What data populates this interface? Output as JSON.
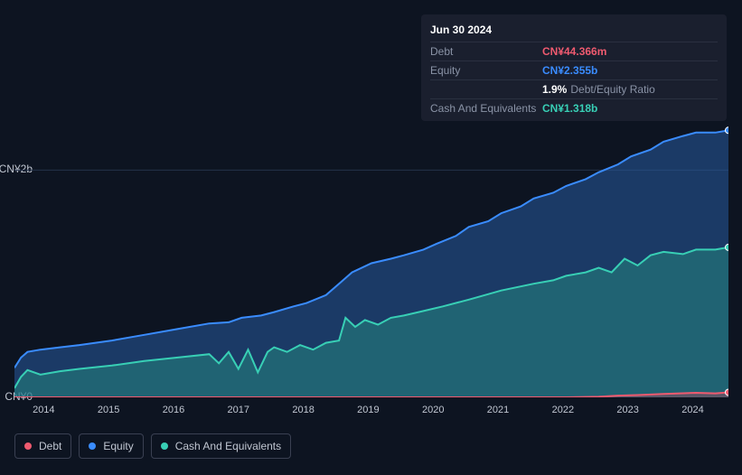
{
  "tooltip": {
    "date": "Jun 30 2024",
    "rows": [
      {
        "label": "Debt",
        "value": "CN¥44.366m",
        "color": "#ef5a6f"
      },
      {
        "label": "Equity",
        "value": "CN¥2.355b",
        "color": "#3a8cff"
      },
      {
        "label": "",
        "value": "1.9%",
        "extra": "Debt/Equity Ratio",
        "color": "#ffffff"
      },
      {
        "label": "Cash And Equivalents",
        "value": "CN¥1.318b",
        "color": "#38cfb5"
      }
    ]
  },
  "chart": {
    "type": "area",
    "background": "#0d1421",
    "grid_color": "#24324a",
    "y_axis": {
      "min": 0,
      "max": 2.4,
      "labels": [
        {
          "text": "CN¥2b",
          "value": 2.0
        },
        {
          "text": "CN¥0",
          "value": 0.0
        }
      ],
      "label_fontsize": 12,
      "label_color": "#c0c6d1"
    },
    "x_axis": {
      "min": 2014,
      "max": 2025,
      "ticks": [
        2014,
        2015,
        2016,
        2017,
        2018,
        2019,
        2020,
        2021,
        2022,
        2023,
        2024
      ],
      "label_fontsize": 11,
      "label_color": "#c0c6d1"
    },
    "series": [
      {
        "name": "Equity",
        "color": "#3a8cff",
        "fill": "rgba(40,90,160,0.55)",
        "line_width": 2,
        "data": [
          [
            2014.0,
            0.26
          ],
          [
            2014.1,
            0.35
          ],
          [
            2014.2,
            0.4
          ],
          [
            2014.4,
            0.42
          ],
          [
            2014.7,
            0.44
          ],
          [
            2015.0,
            0.46
          ],
          [
            2015.5,
            0.5
          ],
          [
            2016.0,
            0.55
          ],
          [
            2016.5,
            0.6
          ],
          [
            2017.0,
            0.65
          ],
          [
            2017.3,
            0.66
          ],
          [
            2017.5,
            0.7
          ],
          [
            2017.8,
            0.72
          ],
          [
            2018.0,
            0.75
          ],
          [
            2018.3,
            0.8
          ],
          [
            2018.5,
            0.83
          ],
          [
            2018.8,
            0.9
          ],
          [
            2019.0,
            1.0
          ],
          [
            2019.2,
            1.1
          ],
          [
            2019.5,
            1.18
          ],
          [
            2019.8,
            1.22
          ],
          [
            2020.0,
            1.25
          ],
          [
            2020.3,
            1.3
          ],
          [
            2020.5,
            1.35
          ],
          [
            2020.8,
            1.42
          ],
          [
            2021.0,
            1.5
          ],
          [
            2021.3,
            1.55
          ],
          [
            2021.5,
            1.62
          ],
          [
            2021.8,
            1.68
          ],
          [
            2022.0,
            1.75
          ],
          [
            2022.3,
            1.8
          ],
          [
            2022.5,
            1.86
          ],
          [
            2022.8,
            1.92
          ],
          [
            2023.0,
            1.98
          ],
          [
            2023.3,
            2.05
          ],
          [
            2023.5,
            2.12
          ],
          [
            2023.8,
            2.18
          ],
          [
            2024.0,
            2.25
          ],
          [
            2024.3,
            2.3
          ],
          [
            2024.5,
            2.33
          ],
          [
            2024.8,
            2.33
          ],
          [
            2025.0,
            2.35
          ]
        ]
      },
      {
        "name": "Cash And Equivalents",
        "color": "#38cfb5",
        "fill": "rgba(40,150,130,0.45)",
        "line_width": 2,
        "data": [
          [
            2014.0,
            0.08
          ],
          [
            2014.1,
            0.18
          ],
          [
            2014.2,
            0.24
          ],
          [
            2014.4,
            0.2
          ],
          [
            2014.7,
            0.23
          ],
          [
            2015.0,
            0.25
          ],
          [
            2015.5,
            0.28
          ],
          [
            2016.0,
            0.32
          ],
          [
            2016.5,
            0.35
          ],
          [
            2017.0,
            0.38
          ],
          [
            2017.15,
            0.3
          ],
          [
            2017.3,
            0.4
          ],
          [
            2017.45,
            0.25
          ],
          [
            2017.6,
            0.42
          ],
          [
            2017.75,
            0.22
          ],
          [
            2017.9,
            0.4
          ],
          [
            2018.0,
            0.44
          ],
          [
            2018.2,
            0.4
          ],
          [
            2018.4,
            0.46
          ],
          [
            2018.6,
            0.42
          ],
          [
            2018.8,
            0.48
          ],
          [
            2019.0,
            0.5
          ],
          [
            2019.1,
            0.7
          ],
          [
            2019.25,
            0.62
          ],
          [
            2019.4,
            0.68
          ],
          [
            2019.6,
            0.64
          ],
          [
            2019.8,
            0.7
          ],
          [
            2020.0,
            0.72
          ],
          [
            2020.3,
            0.76
          ],
          [
            2020.6,
            0.8
          ],
          [
            2021.0,
            0.86
          ],
          [
            2021.5,
            0.94
          ],
          [
            2022.0,
            1.0
          ],
          [
            2022.3,
            1.03
          ],
          [
            2022.5,
            1.07
          ],
          [
            2022.8,
            1.1
          ],
          [
            2023.0,
            1.14
          ],
          [
            2023.2,
            1.1
          ],
          [
            2023.4,
            1.22
          ],
          [
            2023.6,
            1.16
          ],
          [
            2023.8,
            1.25
          ],
          [
            2024.0,
            1.28
          ],
          [
            2024.3,
            1.26
          ],
          [
            2024.5,
            1.3
          ],
          [
            2024.8,
            1.3
          ],
          [
            2025.0,
            1.32
          ]
        ]
      },
      {
        "name": "Debt",
        "color": "#ef5a6f",
        "fill": "rgba(200,60,80,0.35)",
        "line_width": 2,
        "data": [
          [
            2014.0,
            0.0
          ],
          [
            2015.0,
            0.0
          ],
          [
            2016.0,
            0.0
          ],
          [
            2017.0,
            0.0
          ],
          [
            2018.0,
            0.0
          ],
          [
            2019.0,
            0.0
          ],
          [
            2020.0,
            0.0
          ],
          [
            2021.0,
            0.0
          ],
          [
            2022.0,
            0.0
          ],
          [
            2022.5,
            0.0
          ],
          [
            2023.0,
            0.005
          ],
          [
            2023.3,
            0.015
          ],
          [
            2023.6,
            0.02
          ],
          [
            2024.0,
            0.03
          ],
          [
            2024.5,
            0.04
          ],
          [
            2024.8,
            0.035
          ],
          [
            2025.0,
            0.044
          ]
        ]
      }
    ],
    "legend": {
      "items": [
        {
          "label": "Debt",
          "color": "#ef5a6f"
        },
        {
          "label": "Equity",
          "color": "#3a8cff"
        },
        {
          "label": "Cash And Equivalents",
          "color": "#38cfb5"
        }
      ],
      "border_color": "#3a4052",
      "fontsize": 12
    }
  }
}
